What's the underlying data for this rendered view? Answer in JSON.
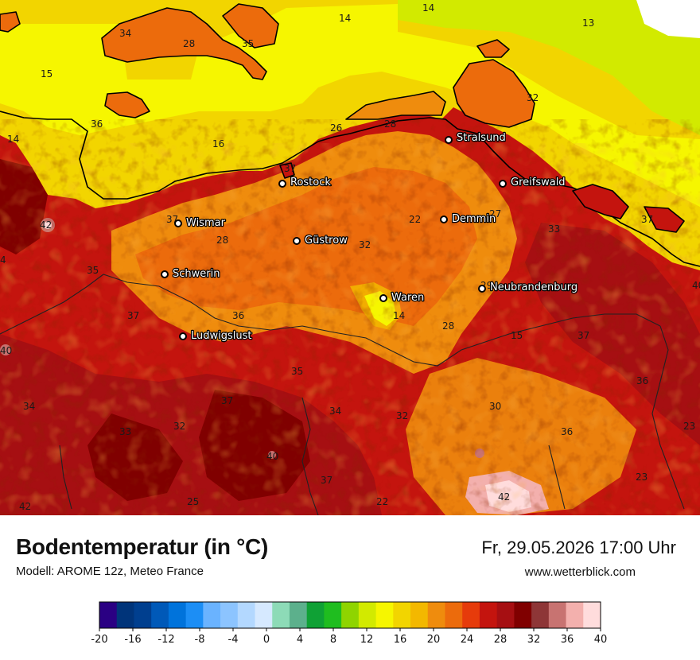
{
  "title": "Bodentemperatur (in °C)",
  "model": "Modell: AROME 12z, Meteo France",
  "datetime": "Fr, 29.05.2026 17:00 Uhr",
  "website": "www.wetterblick.com",
  "cities": [
    {
      "name": "Stralsund"
    },
    {
      "name": "Rostock"
    },
    {
      "name": "Greifswald"
    },
    {
      "name": "Wismar"
    },
    {
      "name": "Demmin"
    },
    {
      "name": "Güstrow"
    },
    {
      "name": "Schwerin"
    },
    {
      "name": "Neubrandenburg"
    },
    {
      "name": "Waren"
    },
    {
      "name": "Ludwigslust"
    }
  ],
  "values": [
    "14",
    "14",
    "13",
    "34",
    "28",
    "35",
    "15",
    "32",
    "36",
    "28",
    "26",
    "14",
    "16",
    "37",
    "22",
    "27",
    "33",
    "37",
    "42",
    "37",
    "28",
    "32",
    "4",
    "35",
    "29",
    "40",
    "37",
    "36",
    "14",
    "28",
    "15",
    "37",
    "40",
    "35",
    "36",
    "34",
    "37",
    "34",
    "32",
    "30",
    "36",
    "23",
    "33",
    "32",
    "40",
    "37",
    "23",
    "42",
    "25",
    "22",
    "42"
  ],
  "legend": {
    "colors": [
      "#2a0083",
      "#00347a",
      "#003f8f",
      "#0059b8",
      "#0073db",
      "#1c8ef5",
      "#6ab3ff",
      "#8cc4ff",
      "#b3d8ff",
      "#d6e9ff",
      "#8ddbb7",
      "#5cb08c",
      "#0fa135",
      "#1fbd1f",
      "#8fd400",
      "#d2ea00",
      "#f6f600",
      "#f2d500",
      "#f3b800",
      "#ef8c0d",
      "#ec6b0c",
      "#e63b0b",
      "#c4140e",
      "#a60f12",
      "#800000",
      "#8e3637",
      "#c87371",
      "#f3b0ad",
      "#ffdcdc"
    ],
    "tick_labels": [
      "-20",
      "-16",
      "-12",
      "-8",
      "-4",
      "0",
      "4",
      "8",
      "12",
      "16",
      "20",
      "24",
      "28",
      "32",
      "36",
      "40"
    ]
  }
}
